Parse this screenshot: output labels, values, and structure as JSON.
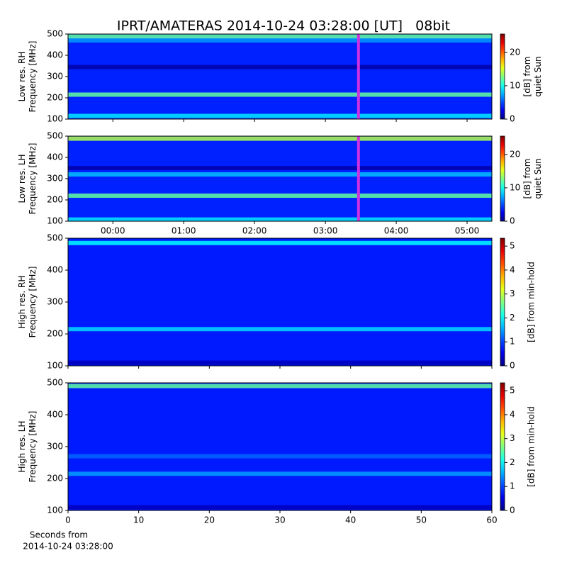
{
  "title": "IPRT/AMATERAS 2014-10-24 03:28:00 [UT]   08bit",
  "chart_data": [
    {
      "type": "heatmap",
      "colormap": "jet",
      "ylabel": [
        "Low res. RH",
        "Frequency [MHz]"
      ],
      "colorbar_label": [
        "[dB] from",
        "quiet Sun"
      ],
      "xlim": [
        -0.633,
        5.35
      ],
      "xticks": [
        {
          "value": 0,
          "label": "00:00"
        },
        {
          "value": 1,
          "label": "01:00"
        },
        {
          "value": 2,
          "label": "02:00"
        },
        {
          "value": 3,
          "label": "03:00"
        },
        {
          "value": 4,
          "label": "04:00"
        },
        {
          "value": 5,
          "label": "05:00"
        }
      ],
      "show_xtick_labels": false,
      "ylim": [
        100,
        500
      ],
      "yticks": [
        100,
        200,
        300,
        400,
        500
      ],
      "clim": [
        0,
        25.5
      ],
      "cticks": [
        0,
        10,
        20
      ],
      "background_level": 4,
      "bands": [
        {
          "freq": 488,
          "level": 12
        },
        {
          "freq": 215,
          "level": 12
        },
        {
          "freq": 115,
          "level": 9
        },
        {
          "freq": 345,
          "level": 1
        },
        {
          "freq": 470,
          "level": 7
        }
      ],
      "marker_x": 3.467,
      "marker_color": "#d030e0"
    },
    {
      "type": "heatmap",
      "colormap": "jet",
      "ylabel": [
        "Low res. LH",
        "Frequency [MHz]"
      ],
      "colorbar_label": [
        "[dB] from",
        "quiet Sun"
      ],
      "xlim": [
        -0.633,
        5.35
      ],
      "xticks": [
        {
          "value": 0,
          "label": "00:00"
        },
        {
          "value": 1,
          "label": "01:00"
        },
        {
          "value": 2,
          "label": "02:00"
        },
        {
          "value": 3,
          "label": "03:00"
        },
        {
          "value": 4,
          "label": "04:00"
        },
        {
          "value": 5,
          "label": "05:00"
        }
      ],
      "show_xtick_labels": true,
      "ylim": [
        100,
        500
      ],
      "yticks": [
        100,
        200,
        300,
        400,
        500
      ],
      "clim": [
        0,
        25.5
      ],
      "cticks": [
        0,
        10,
        20
      ],
      "background_level": 4,
      "bands": [
        {
          "freq": 488,
          "level": 14
        },
        {
          "freq": 220,
          "level": 12
        },
        {
          "freq": 320,
          "level": 8
        },
        {
          "freq": 108,
          "level": 9
        },
        {
          "freq": 350,
          "level": 1
        }
      ],
      "marker_x": 3.467,
      "marker_color": "#d030e0"
    },
    {
      "type": "heatmap",
      "colormap": "jet",
      "ylabel": [
        "High res. RH",
        "Frequency [MHz]"
      ],
      "colorbar_label": [
        "[dB] from min-hold"
      ],
      "xlim": [
        0,
        60
      ],
      "xticks": [
        0,
        10,
        20,
        30,
        40,
        50,
        60
      ],
      "show_xtick_labels": false,
      "ylim": [
        100,
        500
      ],
      "yticks": [
        100,
        200,
        300,
        400,
        500
      ],
      "clim": [
        0,
        5.33
      ],
      "cticks": [
        0,
        1,
        2,
        3,
        4,
        5
      ],
      "background_level": 0.8,
      "bands": [
        {
          "freq": 485,
          "level": 2
        },
        {
          "freq": 215,
          "level": 1.8
        },
        {
          "freq": 110,
          "level": 0.3
        }
      ]
    },
    {
      "type": "heatmap",
      "colormap": "jet",
      "ylabel": [
        "High res. LH",
        "Frequency [MHz]"
      ],
      "colorbar_label": [
        "[dB] from min-hold"
      ],
      "xlim": [
        0,
        60
      ],
      "xticks": [
        0,
        10,
        20,
        30,
        40,
        50,
        60
      ],
      "show_xtick_labels": true,
      "xlabel": [
        "Seconds from",
        "2014-10-24 03:28:00"
      ],
      "ylim": [
        100,
        500
      ],
      "yticks": [
        100,
        200,
        300,
        400,
        500
      ],
      "clim": [
        0,
        5.33
      ],
      "cticks": [
        0,
        1,
        2,
        3,
        4,
        5
      ],
      "background_level": 0.8,
      "bands": [
        {
          "freq": 490,
          "level": 2.5
        },
        {
          "freq": 270,
          "level": 1.2
        },
        {
          "freq": 215,
          "level": 1.5
        },
        {
          "freq": 110,
          "level": 0.3
        }
      ]
    }
  ]
}
